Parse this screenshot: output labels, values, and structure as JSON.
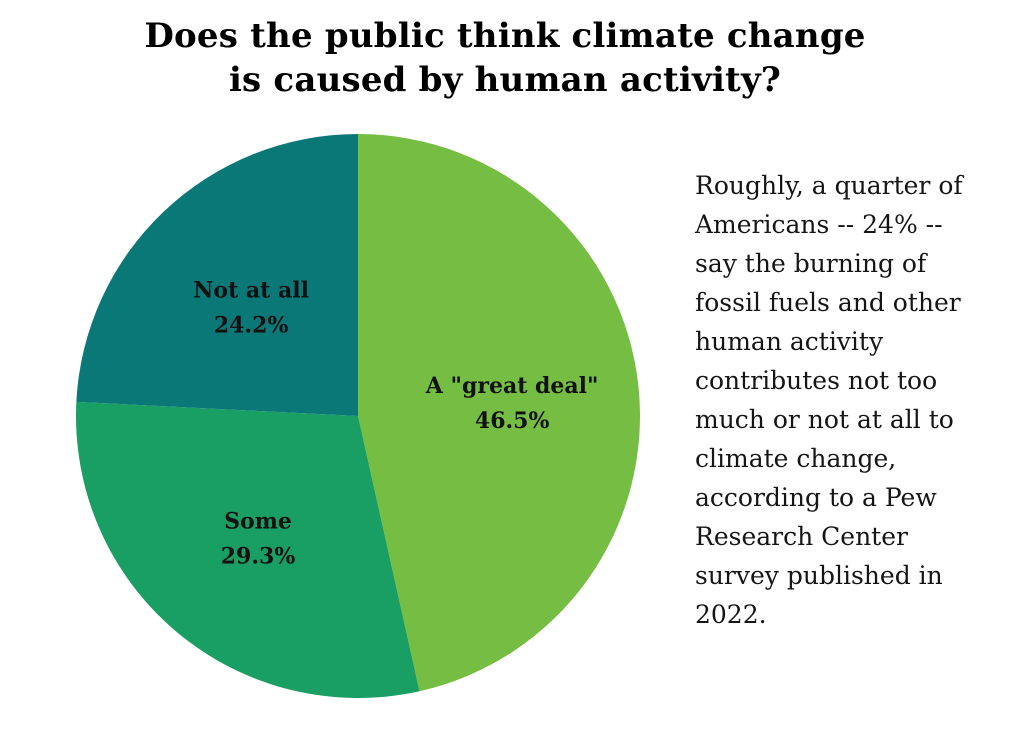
{
  "title": {
    "line1": "Does the public think climate change",
    "line2": "is caused by human activity?"
  },
  "chart_data": {
    "type": "pie",
    "title": "Does the public think climate change is caused by human activity?",
    "slices": [
      {
        "name": "A \"great deal\"",
        "value": 46.5,
        "label": "46.5%",
        "color": "#76be43"
      },
      {
        "name": "Some",
        "value": 29.3,
        "label": "29.3%",
        "color": "#199e64"
      },
      {
        "name": "Not at all",
        "value": 24.2,
        "label": "24.2%",
        "color": "#0b7878"
      }
    ]
  },
  "note": {
    "lines": [
      "Roughly, a quarter of",
      "Americans -- 24% --",
      "say the burning of",
      "fossil fuels and other",
      "human activity",
      "contributes not too",
      "much or not at all to",
      "climate change,",
      "according to a Pew",
      "Research Center",
      "survey published in",
      "2022."
    ]
  }
}
